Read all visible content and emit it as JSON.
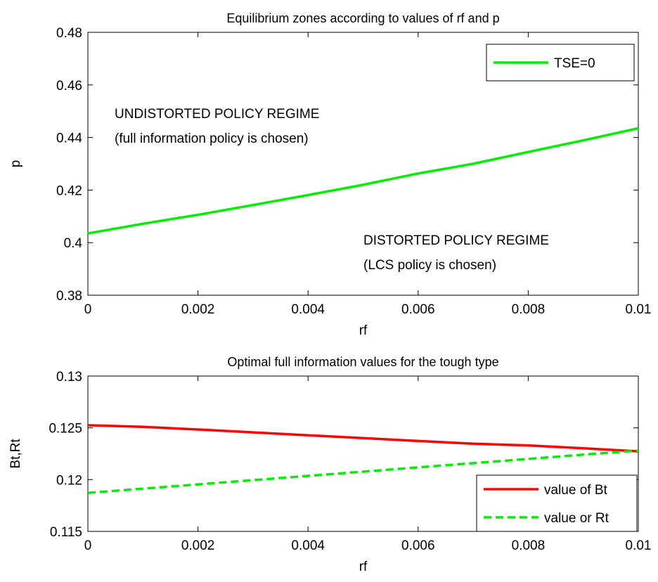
{
  "chart_data": [
    {
      "type": "line",
      "title": "Equilibrium zones according to values of rf and p",
      "xlabel": "rf",
      "ylabel": "p",
      "xlim": [
        0,
        0.01
      ],
      "ylim": [
        0.38,
        0.48
      ],
      "xticks": [
        0,
        0.002,
        0.004,
        0.006,
        0.008,
        0.01
      ],
      "xtick_labels": [
        "0",
        "0.002",
        "0.004",
        "0.006",
        "0.008",
        "0.01"
      ],
      "yticks": [
        0.38,
        0.4,
        0.42,
        0.44,
        0.46,
        0.48
      ],
      "ytick_labels": [
        "0.38",
        "0.4",
        "0.42",
        "0.44",
        "0.46",
        "0.48"
      ],
      "grid": false,
      "legend_position": "top-right",
      "series": [
        {
          "name": "TSE=0",
          "color": "#00ee00",
          "style": "solid",
          "x": [
            0,
            0.001,
            0.002,
            0.003,
            0.004,
            0.005,
            0.006,
            0.007,
            0.008,
            0.009,
            0.01
          ],
          "y": [
            0.4035,
            0.4072,
            0.4106,
            0.4143,
            0.4181,
            0.422,
            0.4263,
            0.43,
            0.4345,
            0.4389,
            0.4435
          ]
        }
      ],
      "annotations": [
        {
          "lines": [
            "UNDISTORTED POLICY REGIME",
            "(full information policy is chosen)"
          ],
          "x": 0.0005,
          "y": [
            0.4505,
            0.4405
          ]
        },
        {
          "lines": [
            "DISTORTED POLICY REGIME",
            "(LCS policy is chosen)"
          ],
          "x": 0.005,
          "y": [
            0.4005,
            0.3905
          ]
        }
      ]
    },
    {
      "type": "line",
      "title": "Optimal full information values for the tough type",
      "xlabel": "rf",
      "ylabel": "Bt,Rt",
      "xlim": [
        0,
        0.01
      ],
      "ylim": [
        0.115,
        0.13
      ],
      "xticks": [
        0,
        0.002,
        0.004,
        0.006,
        0.008,
        0.01
      ],
      "xtick_labels": [
        "0",
        "0.002",
        "0.004",
        "0.006",
        "0.008",
        "0.01"
      ],
      "yticks": [
        0.115,
        0.12,
        0.125,
        0.13
      ],
      "ytick_labels": [
        "0.115",
        "0.12",
        "0.125",
        "0.13"
      ],
      "grid": false,
      "legend_position": "bottom-right",
      "series": [
        {
          "name": "value of Bt",
          "color": "#ff0000",
          "style": "solid",
          "x": [
            0,
            0.001,
            0.002,
            0.003,
            0.004,
            0.005,
            0.006,
            0.007,
            0.008,
            0.009,
            0.01
          ],
          "y": [
            0.12525,
            0.12509,
            0.12484,
            0.12456,
            0.12428,
            0.12401,
            0.12373,
            0.12347,
            0.1233,
            0.12302,
            0.12273
          ]
        },
        {
          "name": "value or Rt",
          "color": "#00ee00",
          "style": "dashed",
          "x": [
            0,
            0.001,
            0.002,
            0.003,
            0.004,
            0.005,
            0.006,
            0.007,
            0.008,
            0.009,
            0.01
          ],
          "y": [
            0.11872,
            0.11913,
            0.11954,
            0.11995,
            0.12036,
            0.12077,
            0.12118,
            0.12159,
            0.122,
            0.12241,
            0.1228
          ]
        }
      ]
    }
  ]
}
